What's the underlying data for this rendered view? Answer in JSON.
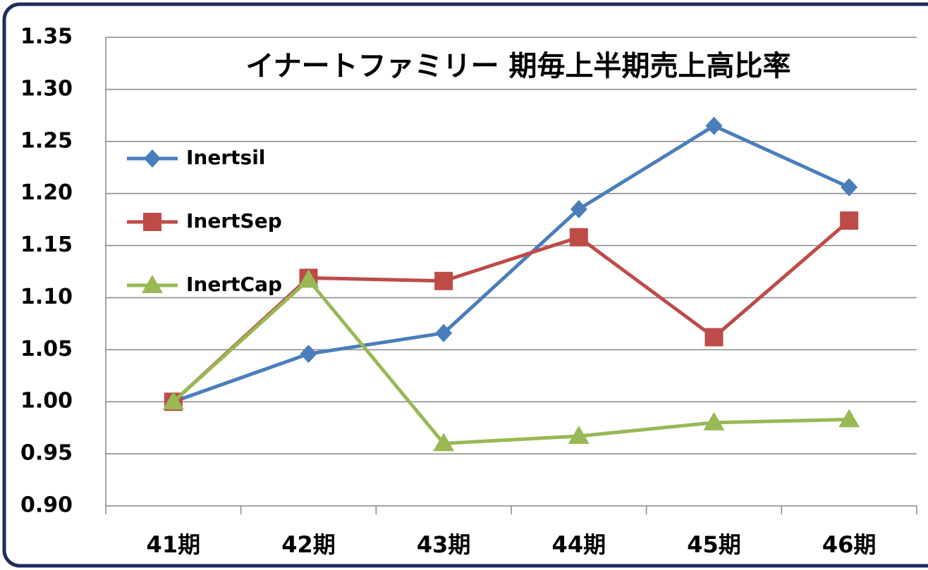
{
  "chart_data": {
    "type": "line",
    "title": "イナートファミリー 期毎上半期売上高比率",
    "categories": [
      "41期",
      "42期",
      "43期",
      "44期",
      "45期",
      "46期"
    ],
    "series": [
      {
        "name": "Inertsil",
        "color": "#4a7ebb",
        "marker": "diamond",
        "values": [
          1.0,
          1.046,
          1.066,
          1.185,
          1.265,
          1.206
        ]
      },
      {
        "name": "InertSep",
        "color": "#be4b48",
        "marker": "square",
        "values": [
          1.0,
          1.119,
          1.116,
          1.158,
          1.062,
          1.174
        ]
      },
      {
        "name": "InertCap",
        "color": "#98b954",
        "marker": "triangle",
        "values": [
          1.0,
          1.117,
          0.96,
          0.967,
          0.98,
          0.983
        ]
      }
    ],
    "ylim": [
      0.9,
      1.35
    ],
    "yticks": [
      {
        "value": 0.9,
        "label": "0.90"
      },
      0.95,
      {
        "value": 1.0,
        "label": "1.00"
      },
      1.05,
      {
        "value": 1.1,
        "label": "1.10"
      },
      1.15,
      {
        "value": 1.2,
        "label": "1.20"
      },
      1.25,
      {
        "value": 1.3,
        "label": "1.30"
      },
      1.35
    ],
    "grid": true
  }
}
